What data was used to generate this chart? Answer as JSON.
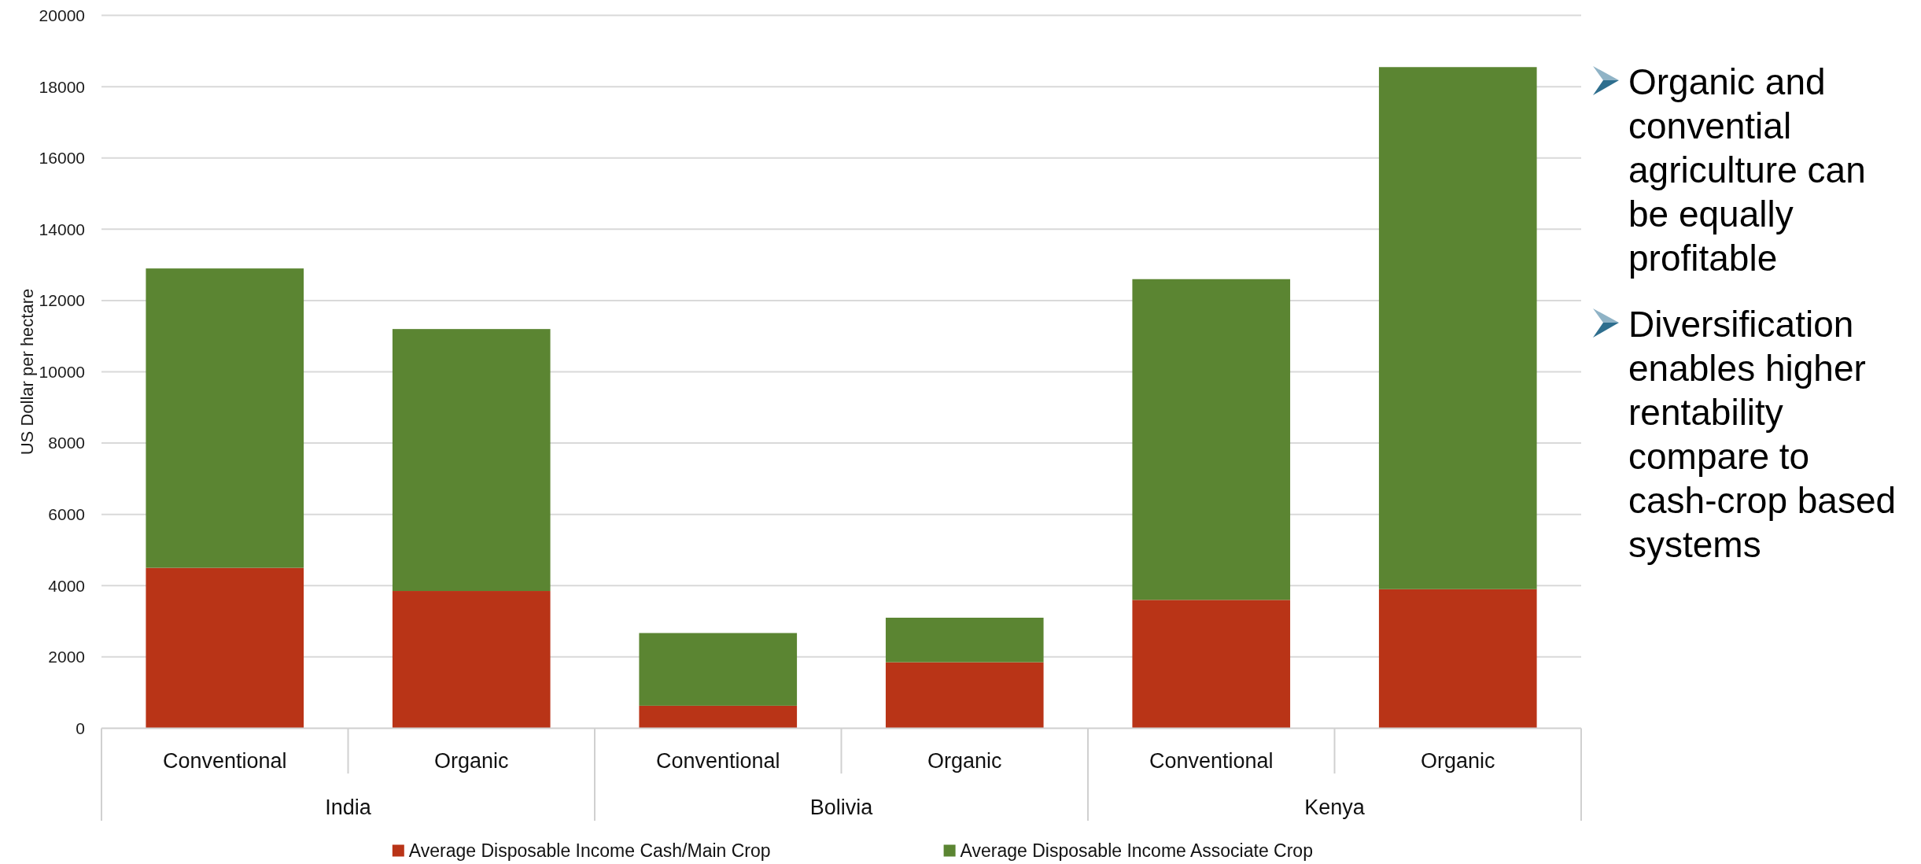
{
  "chart_data": {
    "type": "bar",
    "stacked": true,
    "categories": [
      "Conventional",
      "Organic",
      "Conventional",
      "Organic",
      "Conventional",
      "Organic"
    ],
    "ylabel": "US Dollar per hectare",
    "ylim": [
      0,
      20000
    ],
    "yticks": [
      0,
      2000,
      4000,
      6000,
      8000,
      10000,
      12000,
      14000,
      16000,
      18000,
      20000
    ],
    "grid": "y",
    "legend": "bottom",
    "series": [
      {
        "name": "Average Disposable Income Cash/Main Crop",
        "color": "#b93417",
        "values": [
          4500,
          3850,
          630,
          1850,
          3600,
          3900
        ]
      },
      {
        "name": "Average Disposable Income Associate Crop",
        "color": "#5b8532",
        "values": [
          8400,
          7350,
          2040,
          1250,
          9000,
          14650
        ]
      }
    ],
    "annotations": [
      {
        "text": "India"
      },
      {
        "text": "Bolivia"
      },
      {
        "text": "Kenya"
      },
      "Organic and convential agriculture can be equally profitable",
      "Diversification enables higher rentability compare to cash-crop based systems"
    ]
  }
}
